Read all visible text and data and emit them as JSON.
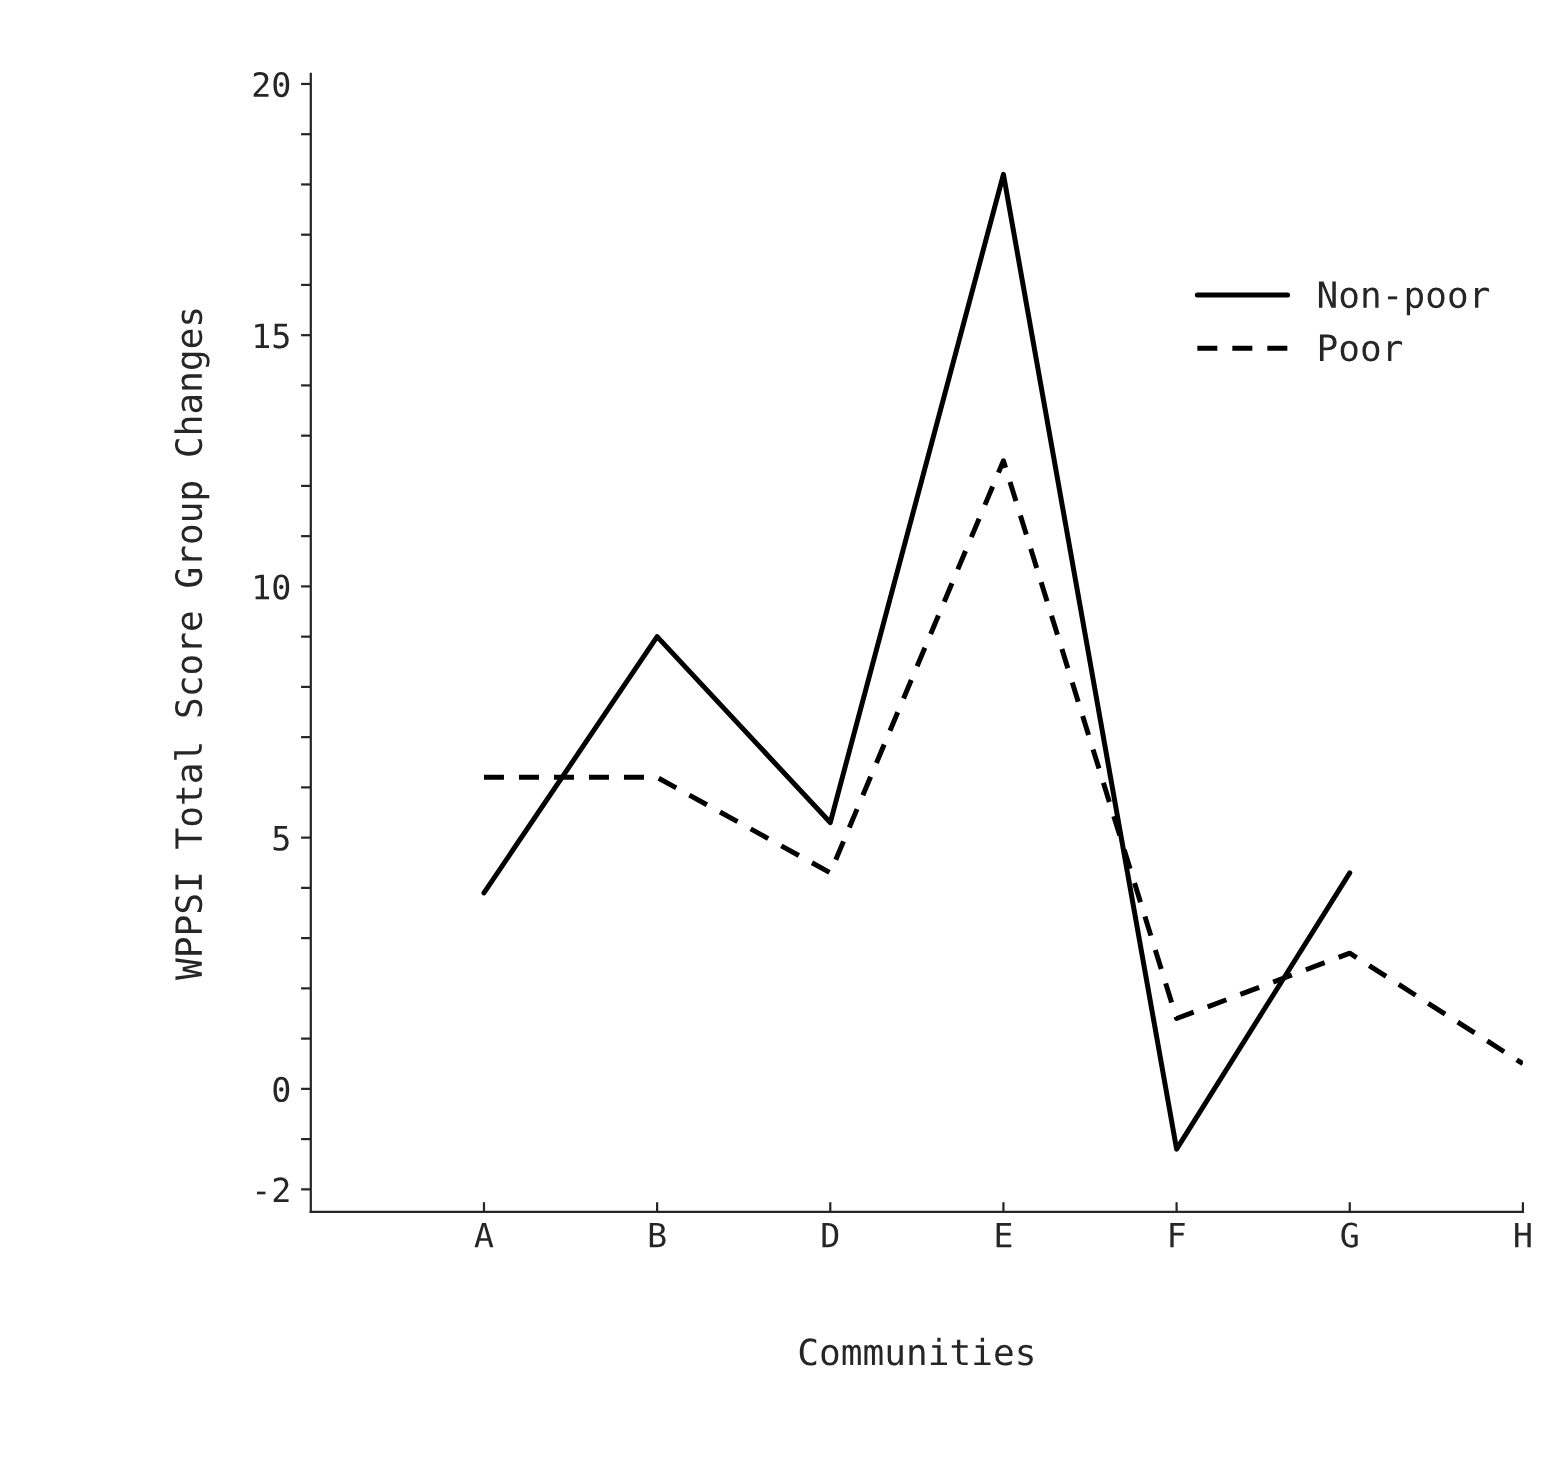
{
  "chart_data": {
    "type": "line",
    "xlabel": "Communities",
    "ylabel": "WPPSI Total Score Group Changes",
    "categories": [
      "A",
      "B",
      "D",
      "E",
      "F",
      "G",
      "H"
    ],
    "series": [
      {
        "name": "Non-poor",
        "color": "#000000",
        "line_style": "solid",
        "values": [
          3.9,
          9.0,
          5.3,
          18.2,
          -1.2,
          4.3,
          null
        ]
      },
      {
        "name": "Poor",
        "color": "#000000",
        "line_style": "dashed",
        "values": [
          6.2,
          6.2,
          4.3,
          12.5,
          1.4,
          2.7,
          0.5
        ]
      }
    ],
    "ylim": [
      -2.45,
      20.2
    ],
    "yticks": [
      -2,
      {
        "value": -1,
        "label": null
      },
      0,
      {
        "value": 1,
        "label": null
      },
      {
        "value": 2,
        "label": null
      },
      {
        "value": 3,
        "label": null
      },
      {
        "value": 4,
        "label": null
      },
      5,
      {
        "value": 6,
        "label": null
      },
      {
        "value": 7,
        "label": null
      },
      {
        "value": 8,
        "label": null
      },
      {
        "value": 9,
        "label": null
      },
      10,
      {
        "value": 11,
        "label": null
      },
      {
        "value": 12,
        "label": null
      },
      {
        "value": 13,
        "label": null
      },
      {
        "value": 14,
        "label": null
      },
      15,
      {
        "value": 16,
        "label": null
      },
      {
        "value": 17,
        "label": null
      },
      {
        "value": 18,
        "label": null
      },
      {
        "value": 19,
        "label": null
      },
      20
    ],
    "grid": false,
    "legend": "right",
    "marker": "none"
  }
}
